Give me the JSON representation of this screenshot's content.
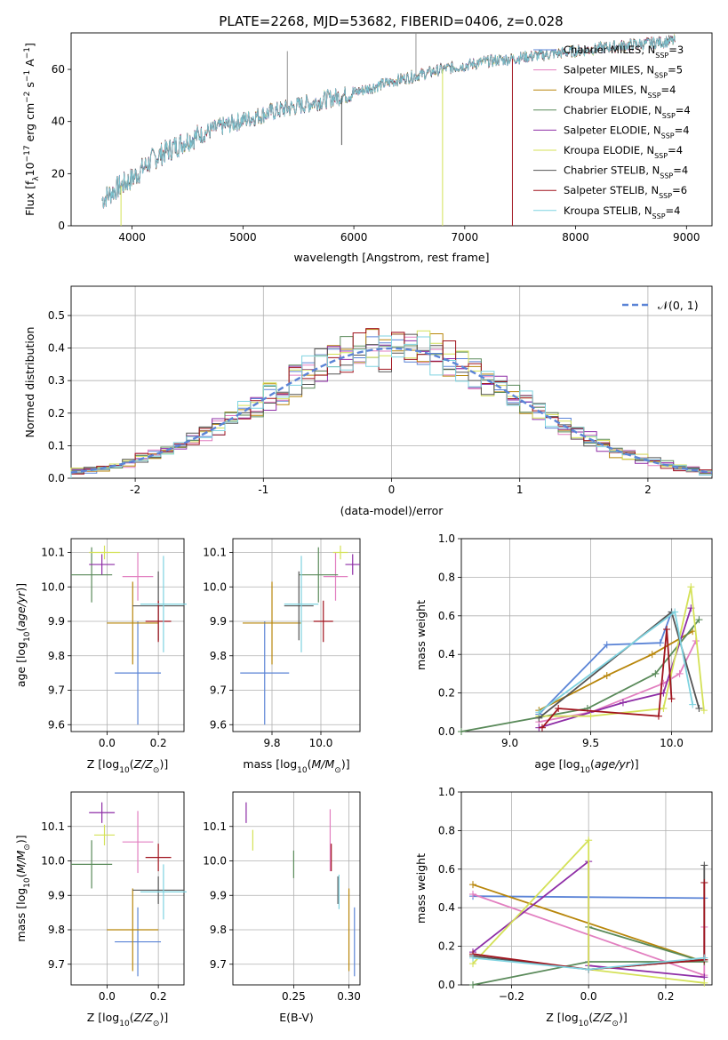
{
  "figure": {
    "title": "PLATE=2268, MJD=53682, FIBERID=0406, z=0.028"
  },
  "legend": [
    {
      "label": "Chabrier MILES, N",
      "sub": "SSP",
      "tail": "=3",
      "color": "#5b84d6"
    },
    {
      "label": "Salpeter MILES, N",
      "sub": "SSP",
      "tail": "=5",
      "color": "#e27fc0"
    },
    {
      "label": "Kroupa MILES, N",
      "sub": "SSP",
      "tail": "=4",
      "color": "#b8860b"
    },
    {
      "label": "Chabrier ELODIE, N",
      "sub": "SSP",
      "tail": "=4",
      "color": "#5a8a5a"
    },
    {
      "label": "Salpeter ELODIE, N",
      "sub": "SSP",
      "tail": "=4",
      "color": "#8e2da6"
    },
    {
      "label": "Kroupa ELODIE, N",
      "sub": "SSP",
      "tail": "=4",
      "color": "#d4e157"
    },
    {
      "label": "Chabrier STELIB, N",
      "sub": "SSP",
      "tail": "=4",
      "color": "#555555"
    },
    {
      "label": "Salpeter STELIB, N",
      "sub": "SSP",
      "tail": "=6",
      "color": "#a0141e"
    },
    {
      "label": "Kroupa STELIB, N",
      "sub": "SSP",
      "tail": "=4",
      "color": "#7fd3e0"
    }
  ],
  "chart_data": [
    {
      "type": "line",
      "id": "spectrum",
      "xlabel": "wavelength [Angstrom, rest frame]",
      "ylabel": "Flux [f_λ 10^-17 erg cm^-2 s^-1 A^-1]",
      "xlim": [
        3450,
        9230
      ],
      "ylim": [
        0,
        74
      ],
      "xticks": [
        4000,
        5000,
        6000,
        7000,
        8000,
        9000
      ],
      "yticks": [
        0,
        20,
        40,
        60
      ],
      "continuum": {
        "x": [
          3730,
          3850,
          4000,
          4200,
          4500,
          4800,
          5200,
          5600,
          6000,
          6400,
          6800,
          7200,
          7600,
          8000,
          8400,
          8900
        ],
        "y": [
          10,
          14,
          18,
          26,
          33,
          38,
          43,
          47,
          51,
          56,
          60,
          63,
          65,
          67,
          69,
          71
        ]
      },
      "dips": [
        {
          "x": 3900,
          "y": 0
        },
        {
          "x": 5890,
          "y": 31
        },
        {
          "x": 6800,
          "y": 0
        },
        {
          "x": 7430,
          "y": 0
        }
      ],
      "spikes": [
        {
          "x": 5400,
          "y": 67
        },
        {
          "x": 6560,
          "y": 74
        }
      ],
      "grid": false
    },
    {
      "type": "histogram",
      "id": "residuals",
      "xlabel": "(data-model)/error",
      "ylabel": "Normed distribution",
      "xlim": [
        -2.5,
        2.5
      ],
      "ylim": [
        0,
        0.59
      ],
      "xticks": [
        -2,
        -1,
        0,
        1,
        2
      ],
      "yticks": [
        0.0,
        0.1,
        0.2,
        0.3,
        0.4,
        0.5
      ],
      "bin_width": 0.1,
      "gaussian_label": "𝒩(0, 1)",
      "grid": true
    },
    {
      "type": "scatter",
      "id": "age_vs_Z",
      "xlabel": "Z [log10(Z/Z⊙)]",
      "ylabel": "age [log10(age/yr)]",
      "xlim": [
        -0.14,
        0.3
      ],
      "ylim": [
        9.58,
        10.14
      ],
      "xticks": [
        0.0,
        0.2
      ],
      "yticks": [
        9.6,
        9.7,
        9.8,
        9.9,
        10.0,
        10.1
      ],
      "points": [
        {
          "x": 0.12,
          "y": 10.03,
          "dx": 0.06,
          "dy": 0.07,
          "s": 1
        },
        {
          "x": 0.12,
          "y": 9.75,
          "dx": 0.09,
          "dy": 0.15,
          "s": 0
        },
        {
          "x": 0.1,
          "y": 9.895,
          "dx": 0.1,
          "dy": 0.12,
          "s": 2
        },
        {
          "x": -0.06,
          "y": 10.035,
          "dx": 0.08,
          "dy": 0.08,
          "s": 3
        },
        {
          "x": -0.02,
          "y": 10.065,
          "dx": 0.05,
          "dy": 0.03,
          "s": 4
        },
        {
          "x": -0.01,
          "y": 10.1,
          "dx": 0.06,
          "dy": 0.02,
          "s": 5
        },
        {
          "x": 0.2,
          "y": 9.945,
          "dx": 0.1,
          "dy": 0.1,
          "s": 6
        },
        {
          "x": 0.2,
          "y": 9.9,
          "dx": 0.05,
          "dy": 0.06,
          "s": 7
        },
        {
          "x": 0.22,
          "y": 9.95,
          "dx": 0.09,
          "dy": 0.14,
          "s": 8
        }
      ]
    },
    {
      "type": "scatter",
      "id": "age_vs_mass",
      "xlabel": "mass [log10(M/M⊙)]",
      "ylabel": "",
      "xlim": [
        9.64,
        10.16
      ],
      "ylim": [
        9.58,
        10.14
      ],
      "xticks": [
        9.8,
        10.0
      ],
      "yticks": [
        9.6,
        9.7,
        9.8,
        9.9,
        10.0,
        10.1
      ],
      "points": [
        {
          "x": 10.06,
          "y": 10.03,
          "dx": 0.05,
          "dy": 0.07,
          "s": 1
        },
        {
          "x": 9.77,
          "y": 9.75,
          "dx": 0.1,
          "dy": 0.15,
          "s": 0
        },
        {
          "x": 9.8,
          "y": 9.895,
          "dx": 0.12,
          "dy": 0.12,
          "s": 2
        },
        {
          "x": 9.99,
          "y": 10.035,
          "dx": 0.08,
          "dy": 0.08,
          "s": 3
        },
        {
          "x": 10.13,
          "y": 10.065,
          "dx": 0.03,
          "dy": 0.03,
          "s": 4
        },
        {
          "x": 10.08,
          "y": 10.1,
          "dx": 0.03,
          "dy": 0.02,
          "s": 5
        },
        {
          "x": 9.91,
          "y": 9.945,
          "dx": 0.06,
          "dy": 0.1,
          "s": 6
        },
        {
          "x": 10.01,
          "y": 9.9,
          "dx": 0.04,
          "dy": 0.06,
          "s": 7
        },
        {
          "x": 9.92,
          "y": 9.95,
          "dx": 0.07,
          "dy": 0.14,
          "s": 8
        }
      ]
    },
    {
      "type": "line",
      "id": "weight_vs_age",
      "xlabel": "age [log10(age/yr)]",
      "ylabel": "mass weight",
      "xlim": [
        8.7,
        10.25
      ],
      "ylim": [
        0,
        1.0
      ],
      "xticks": [
        9.0,
        9.5,
        10.0
      ],
      "yticks": [
        0.0,
        0.2,
        0.4,
        0.6,
        0.8,
        1.0
      ],
      "grid": true,
      "series": [
        {
          "s": 0,
          "x": [
            9.18,
            9.6,
            9.93,
            10.0
          ],
          "y": [
            0.09,
            0.45,
            0.46,
            0.62
          ]
        },
        {
          "s": 1,
          "x": [
            9.18,
            9.5,
            9.95,
            10.05,
            10.15
          ],
          "y": [
            0.05,
            0.1,
            0.25,
            0.3,
            0.47
          ]
        },
        {
          "s": 2,
          "x": [
            9.18,
            9.6,
            9.88,
            10.13
          ],
          "y": [
            0.11,
            0.29,
            0.4,
            0.52
          ]
        },
        {
          "s": 3,
          "x": [
            8.7,
            9.48,
            9.9,
            10.17
          ],
          "y": [
            0.0,
            0.12,
            0.3,
            0.58
          ]
        },
        {
          "s": 4,
          "x": [
            9.18,
            9.7,
            9.95,
            10.12
          ],
          "y": [
            0.02,
            0.15,
            0.2,
            0.64
          ]
        },
        {
          "s": 5,
          "x": [
            9.18,
            9.5,
            9.95,
            10.12,
            10.2
          ],
          "y": [
            0.08,
            0.08,
            0.12,
            0.75,
            0.11
          ]
        },
        {
          "s": 6,
          "x": [
            9.18,
            10.0,
            10.17
          ],
          "y": [
            0.07,
            0.62,
            0.12
          ]
        },
        {
          "s": 7,
          "x": [
            9.2,
            9.3,
            9.92,
            9.97,
            10.0
          ],
          "y": [
            0.02,
            0.12,
            0.08,
            0.53,
            0.17
          ]
        },
        {
          "s": 8,
          "x": [
            9.18,
            10.02,
            10.13
          ],
          "y": [
            0.1,
            0.62,
            0.14
          ]
        }
      ]
    },
    {
      "type": "scatter",
      "id": "mass_vs_Z",
      "xlabel": "Z [log10(Z/Z⊙)]",
      "ylabel": "mass [log10(M/M⊙)]",
      "xlim": [
        -0.14,
        0.3
      ],
      "ylim": [
        9.64,
        10.2
      ],
      "xticks": [
        0.0,
        0.2
      ],
      "yticks": [
        9.7,
        9.8,
        9.9,
        10.0,
        10.1
      ],
      "points": [
        {
          "x": 0.12,
          "y": 10.055,
          "dx": 0.06,
          "dy": 0.09,
          "s": 1
        },
        {
          "x": 0.12,
          "y": 9.765,
          "dx": 0.09,
          "dy": 0.1,
          "s": 0
        },
        {
          "x": 0.1,
          "y": 9.8,
          "dx": 0.1,
          "dy": 0.12,
          "s": 2
        },
        {
          "x": -0.06,
          "y": 9.99,
          "dx": 0.08,
          "dy": 0.07,
          "s": 3
        },
        {
          "x": -0.02,
          "y": 10.14,
          "dx": 0.05,
          "dy": 0.03,
          "s": 4
        },
        {
          "x": -0.01,
          "y": 10.075,
          "dx": 0.04,
          "dy": 0.03,
          "s": 5
        },
        {
          "x": 0.2,
          "y": 9.915,
          "dx": 0.1,
          "dy": 0.04,
          "s": 6
        },
        {
          "x": 0.2,
          "y": 10.01,
          "dx": 0.05,
          "dy": 0.04,
          "s": 7
        },
        {
          "x": 0.22,
          "y": 9.91,
          "dx": 0.09,
          "dy": 0.08,
          "s": 8
        }
      ]
    },
    {
      "type": "scatter",
      "id": "mass_vs_ebv",
      "xlabel": "E(B-V)",
      "ylabel": "",
      "xlim": [
        0.195,
        0.31
      ],
      "ylim": [
        9.64,
        10.2
      ],
      "xticks": [
        0.25,
        0.3
      ],
      "yticks": [
        9.7,
        9.8,
        9.9,
        10.0,
        10.1
      ],
      "points": [
        {
          "x": 0.283,
          "y": 10.06,
          "dy": 0.09,
          "s": 1
        },
        {
          "x": 0.305,
          "y": 9.765,
          "dy": 0.1,
          "s": 0
        },
        {
          "x": 0.3,
          "y": 9.8,
          "dy": 0.12,
          "s": 2
        },
        {
          "x": 0.25,
          "y": 9.99,
          "dy": 0.04,
          "s": 3
        },
        {
          "x": 0.207,
          "y": 10.14,
          "dy": 0.03,
          "s": 4
        },
        {
          "x": 0.213,
          "y": 10.06,
          "dy": 0.03,
          "s": 5
        },
        {
          "x": 0.29,
          "y": 9.915,
          "dy": 0.04,
          "s": 6
        },
        {
          "x": 0.284,
          "y": 10.01,
          "dy": 0.04,
          "s": 7
        },
        {
          "x": 0.291,
          "y": 9.91,
          "dy": 0.05,
          "s": 8
        }
      ]
    },
    {
      "type": "line",
      "id": "weight_vs_Z",
      "xlabel": "Z [log10(Z/Z⊙)]",
      "ylabel": "mass weight",
      "xlim": [
        -0.33,
        0.32
      ],
      "ylim": [
        0,
        1.0
      ],
      "xticks": [
        -0.2,
        0.0,
        0.2
      ],
      "yticks": [
        0.0,
        0.2,
        0.4,
        0.6,
        0.8,
        1.0
      ],
      "grid": true,
      "series": [
        {
          "s": 0,
          "x": [
            -0.3,
            0.3
          ],
          "y": [
            0.46,
            0.45
          ]
        },
        {
          "s": 1,
          "x": [
            -0.3,
            0.3,
            0.3
          ],
          "y": [
            0.47,
            0.05,
            0.3
          ]
        },
        {
          "s": 2,
          "x": [
            -0.3,
            0.3
          ],
          "y": [
            0.52,
            0.12
          ]
        },
        {
          "s": 3,
          "x": [
            -0.3,
            0.0,
            0.3,
            0.0
          ],
          "y": [
            0.0,
            0.12,
            0.12,
            0.3
          ]
        },
        {
          "s": 4,
          "x": [
            -0.3,
            0.0,
            0.0,
            0.3
          ],
          "y": [
            0.17,
            0.64,
            0.1,
            0.04
          ]
        },
        {
          "s": 5,
          "x": [
            -0.3,
            0.0,
            0.0,
            0.3
          ],
          "y": [
            0.11,
            0.75,
            0.08,
            0.01
          ]
        },
        {
          "s": 6,
          "x": [
            -0.3,
            0.0,
            0.3,
            0.3
          ],
          "y": [
            0.15,
            0.08,
            0.13,
            0.62
          ]
        },
        {
          "s": 7,
          "x": [
            -0.3,
            0.0,
            0.3,
            0.3
          ],
          "y": [
            0.16,
            0.08,
            0.13,
            0.53
          ]
        },
        {
          "s": 8,
          "x": [
            -0.3,
            0.0,
            0.3
          ],
          "y": [
            0.14,
            0.08,
            0.14
          ]
        }
      ]
    }
  ]
}
